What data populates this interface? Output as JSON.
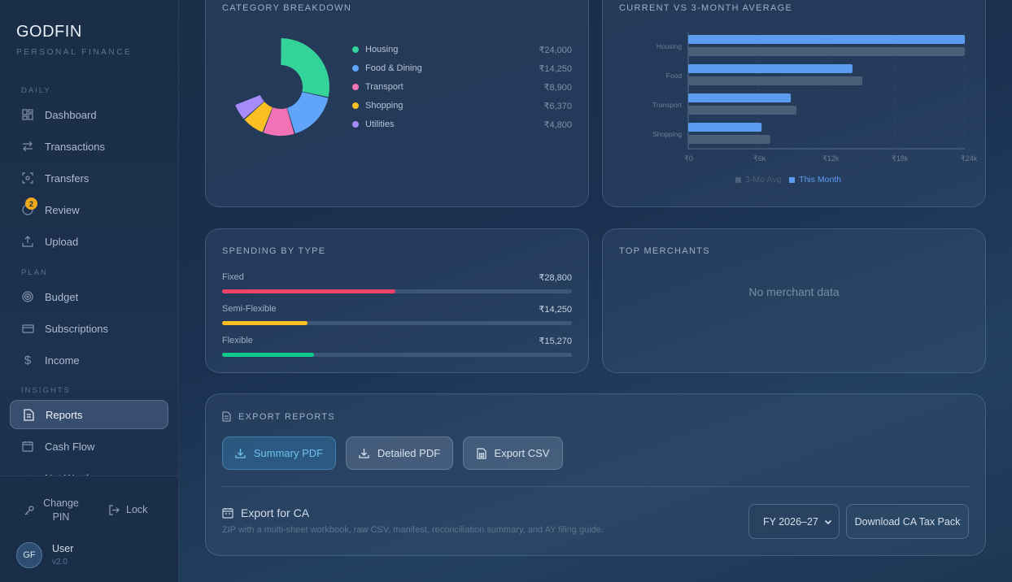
{
  "app": {
    "name": "GODFIN",
    "tagline": "PERSONAL FINANCE"
  },
  "sidebar": {
    "sections": {
      "daily": "DAILY",
      "plan": "PLAN",
      "insights": "INSIGHTS"
    },
    "items": [
      {
        "label": "Dashboard",
        "icon": "dashboard-grid-icon"
      },
      {
        "label": "Transactions",
        "icon": "swap-arrows-icon"
      },
      {
        "label": "Transfers",
        "icon": "scan-icon"
      },
      {
        "label": "Review",
        "icon": "review-icon",
        "badge": "2"
      },
      {
        "label": "Upload",
        "icon": "upload-icon"
      },
      {
        "label": "Budget",
        "icon": "target-icon"
      },
      {
        "label": "Subscriptions",
        "icon": "card-icon"
      },
      {
        "label": "Income",
        "icon": "dollar-icon"
      },
      {
        "label": "Reports",
        "icon": "document-icon",
        "active": true
      },
      {
        "label": "Cash Flow",
        "icon": "calendar-icon"
      },
      {
        "label": "Net Worth",
        "icon": "chart-icon"
      }
    ],
    "change_pin": "Change PIN",
    "lock": "Lock",
    "user": {
      "initials": "GF",
      "name": "User",
      "version": "v2.0"
    }
  },
  "category_breakdown": {
    "title": "CATEGORY BREAKDOWN",
    "items": [
      {
        "name": "Housing",
        "amount": "₹24,000",
        "value": 24000,
        "color": "#34d399"
      },
      {
        "name": "Food & Dining",
        "amount": "₹14,250",
        "value": 14250,
        "color": "#60a5fa"
      },
      {
        "name": "Transport",
        "amount": "₹8,900",
        "value": 8900,
        "color": "#f472b6"
      },
      {
        "name": "Shopping",
        "amount": "₹6,370",
        "value": 6370,
        "color": "#fbbf24"
      },
      {
        "name": "Utilities",
        "amount": "₹4,800",
        "value": 4800,
        "color": "#a78bfa"
      }
    ]
  },
  "comparison": {
    "title": "CURRENT VS 3-MONTH AVERAGE",
    "legend": {
      "avg": "3-Mo Avg",
      "current": "This Month"
    }
  },
  "chart_data": {
    "type": "bar",
    "orientation": "horizontal",
    "categories": [
      "Housing",
      "Food",
      "Transport",
      "Shopping"
    ],
    "series": [
      {
        "name": "This Month",
        "values": [
          24000,
          14250,
          8900,
          6370
        ],
        "color": "#5b9cf0"
      },
      {
        "name": "3-Mo Avg",
        "values": [
          24000,
          15100,
          9400,
          7100
        ],
        "color": "#4a5e78"
      }
    ],
    "xlim": [
      0,
      24000
    ],
    "xticks": [
      "₹0",
      "₹6k",
      "₹12k",
      "₹18k",
      "₹24k"
    ],
    "legend_position": "bottom"
  },
  "spending_by_type": {
    "title": "SPENDING BY TYPE",
    "rows": [
      {
        "label": "Fixed",
        "amount": "₹28,800",
        "fraction": 0.495,
        "color": "#f0436a"
      },
      {
        "label": "Semi-Flexible",
        "amount": "₹14,250",
        "fraction": 0.245,
        "color": "#fbbf24"
      },
      {
        "label": "Flexible",
        "amount": "₹15,270",
        "fraction": 0.262,
        "color": "#10c98b"
      }
    ]
  },
  "top_merchants": {
    "title": "TOP MERCHANTS",
    "empty": "No merchant data"
  },
  "export": {
    "title": "EXPORT REPORTS",
    "summary_pdf": "Summary PDF",
    "detailed_pdf": "Detailed PDF",
    "export_csv": "Export CSV",
    "ca_title": "Export for CA",
    "ca_desc": "ZIP with a multi-sheet workbook, raw CSV, manifest, reconciliation summary, and AY filing guide.",
    "fy_selected": "FY 2026–27",
    "download_ca": "Download CA Tax Pack"
  }
}
